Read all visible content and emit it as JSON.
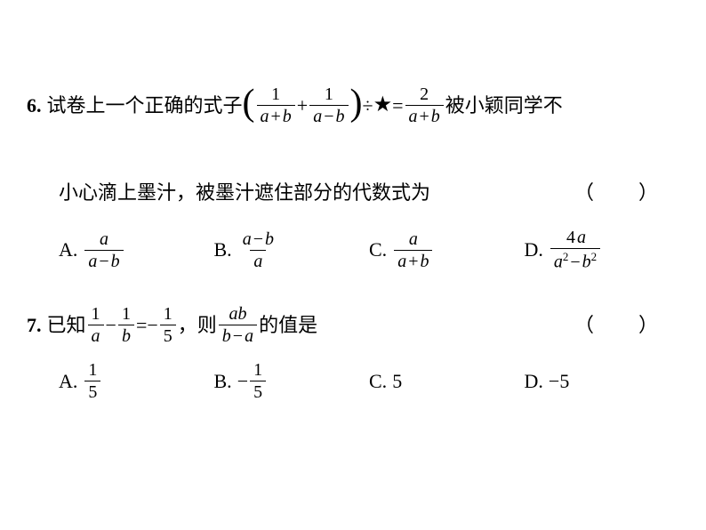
{
  "problems": [
    {
      "number": "6.",
      "textStart": "试卷上一个正确的式子",
      "textEnd": "被小颖同学不",
      "textLine2": "小心滴上墨汁，被墨汁遮住部分的代数式为",
      "expr": {
        "frac1_num": "1",
        "frac1_den_left": "a",
        "frac1_den_op": "+",
        "frac1_den_right": "b",
        "mid_op": "+",
        "frac2_num": "1",
        "frac2_den_left": "a",
        "frac2_den_op": "−",
        "frac2_den_right": "b",
        "div": "÷",
        "star": "★",
        "eq": "=",
        "frac3_num": "2",
        "frac3_den_left": "a",
        "frac3_den_op": "+",
        "frac3_den_right": "b"
      },
      "bracket": "（　）",
      "options": {
        "A": {
          "label": "A.",
          "num": "a",
          "den_left": "a",
          "den_op": "−",
          "den_right": "b"
        },
        "B": {
          "label": "B.",
          "num_left": "a",
          "num_op": "−",
          "num_right": "b",
          "den": "a"
        },
        "C": {
          "label": "C.",
          "num": "a",
          "den_left": "a",
          "den_op": "+",
          "den_right": "b"
        },
        "D": {
          "label": "D.",
          "num": "4a",
          "den_left": "a",
          "den_op": "−",
          "den_right": "b",
          "sup": "2"
        }
      }
    },
    {
      "number": "7.",
      "textStart": "已知",
      "textMid": "，则",
      "textEnd": "的值是",
      "expr": {
        "frac1_num": "1",
        "frac1_den": "a",
        "op1": "−",
        "frac2_num": "1",
        "frac2_den": "b",
        "eq": "=",
        "neg": "−",
        "frac3_num": "1",
        "frac3_den": "5",
        "frac4_num": "ab",
        "frac4_den_left": "b",
        "frac4_den_op": "−",
        "frac4_den_right": "a"
      },
      "bracket": "（　）",
      "options": {
        "A": {
          "label": "A.",
          "num": "1",
          "den": "5"
        },
        "B": {
          "label": "B.",
          "neg": "−",
          "num": "1",
          "den": "5"
        },
        "C": {
          "label": "C.",
          "val": "5"
        },
        "D": {
          "label": "D.",
          "neg": "−",
          "val": "5"
        }
      }
    }
  ]
}
